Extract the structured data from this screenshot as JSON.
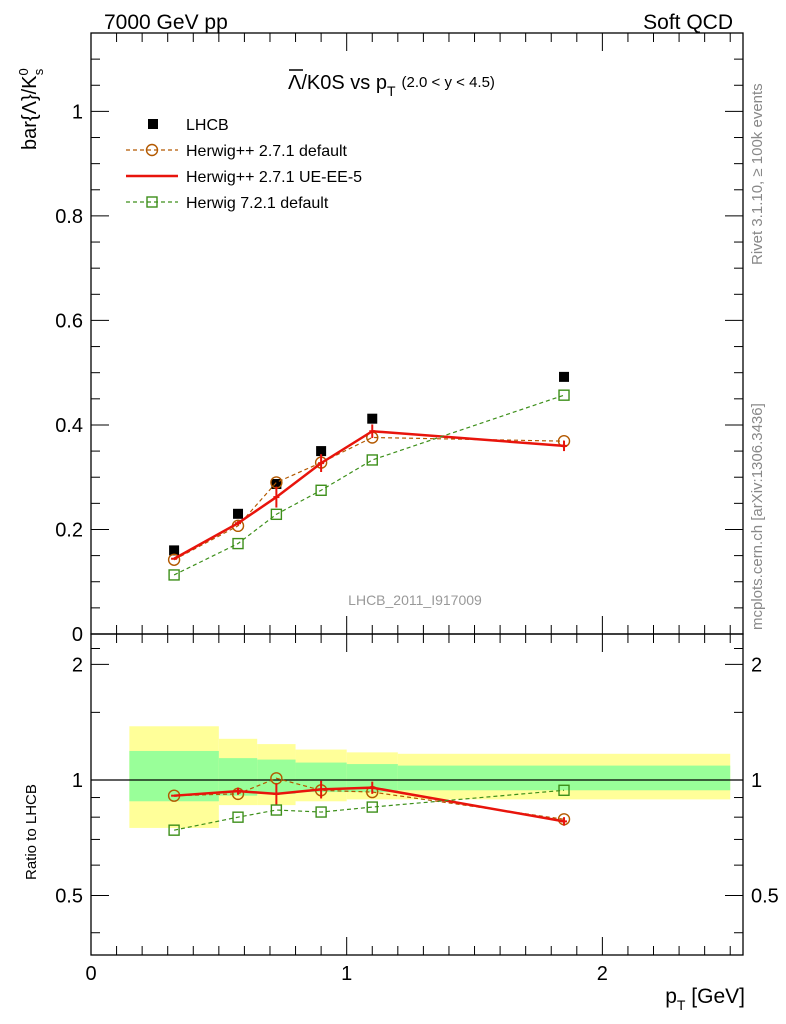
{
  "header": {
    "left": "7000 GeV pp",
    "right": "Soft QCD"
  },
  "side": {
    "rivet": "Rivet 3.1.10, ≥ 100k events",
    "mcplots": "mcplots.cern.ch [arXiv:1306.3436]"
  },
  "chart_data": [
    {
      "type": "scatter",
      "title_main": "Λ/K0S vs p",
      "title_sub": "T",
      "title_range": "(2.0 < y < 4.5)",
      "ylabel": "bar{Λ}/K",
      "ylabel_sup": "0",
      "ylabel_sub": "s",
      "watermark": "LHCB_2011_I917009",
      "xlim": [
        0,
        2.55
      ],
      "ylim": [
        0,
        1.15
      ],
      "yticks": [
        {
          "v": 0,
          "l": "0"
        },
        {
          "v": 0.2,
          "l": "0.2"
        },
        {
          "v": 0.4,
          "l": "0.4"
        },
        {
          "v": 0.6,
          "l": "0.6"
        },
        {
          "v": 0.8,
          "l": "0.8"
        },
        {
          "v": 1,
          "l": "1"
        }
      ],
      "series": [
        {
          "name": "LHCB",
          "style": "data",
          "color": "#000000",
          "x": [
            0.325,
            0.575,
            0.725,
            0.9,
            1.1,
            1.85
          ],
          "y": [
            0.16,
            0.23,
            0.287,
            0.35,
            0.412,
            0.492
          ],
          "err": [
            0,
            0,
            0,
            0,
            0,
            0
          ]
        },
        {
          "name": "Herwig++ 2.7.1 default",
          "style": "circle-dash",
          "color": "#b35900",
          "x": [
            0.325,
            0.575,
            0.725,
            0.9,
            1.1,
            1.85
          ],
          "y": [
            0.142,
            0.207,
            0.29,
            0.328,
            0.376,
            0.369
          ],
          "err": [
            0,
            0,
            0,
            0,
            0,
            0
          ]
        },
        {
          "name": "Herwig++ 2.7.1 UE-EE-5",
          "style": "solid",
          "color": "#e8140c",
          "x": [
            0.325,
            0.575,
            0.725,
            0.9,
            1.1,
            1.85
          ],
          "y": [
            0.144,
            0.212,
            0.262,
            0.327,
            0.388,
            0.36
          ],
          "err": [
            0,
            0.004,
            0.02,
            0.017,
            0.013,
            0.01
          ]
        },
        {
          "name": "Herwig 7.2.1 default",
          "style": "square-dash",
          "color": "#3d8f1a",
          "x": [
            0.325,
            0.575,
            0.725,
            0.9,
            1.1,
            1.85
          ],
          "y": [
            0.113,
            0.173,
            0.229,
            0.275,
            0.333,
            0.457
          ],
          "err": [
            0,
            0,
            0,
            0,
            0,
            0
          ]
        }
      ]
    },
    {
      "type": "scatter",
      "ylabel": "Ratio to LHCB",
      "xlabel_main": "p",
      "xlabel_sub": "T",
      "xlabel_unit": " [GeV]",
      "xlim": [
        0,
        2.55
      ],
      "ylim": [
        0.35,
        2.4
      ],
      "xticks": [
        {
          "v": 0,
          "l": "0"
        },
        {
          "v": 1,
          "l": "1"
        },
        {
          "v": 2,
          "l": "2"
        }
      ],
      "yticks": [
        {
          "v": 0.5,
          "l": "0.5"
        },
        {
          "v": 1,
          "l": "1"
        },
        {
          "v": 2,
          "l": "2"
        }
      ],
      "bands": [
        {
          "x0": 0.15,
          "x1": 0.5,
          "inner": [
            0.88,
            1.19
          ],
          "outer": [
            0.75,
            1.38
          ]
        },
        {
          "x0": 0.5,
          "x1": 0.65,
          "inner": [
            0.91,
            1.14
          ],
          "outer": [
            0.86,
            1.28
          ]
        },
        {
          "x0": 0.65,
          "x1": 0.8,
          "inner": [
            0.92,
            1.13
          ],
          "outer": [
            0.86,
            1.24
          ]
        },
        {
          "x0": 0.8,
          "x1": 1.0,
          "inner": [
            0.93,
            1.11
          ],
          "outer": [
            0.88,
            1.2
          ]
        },
        {
          "x0": 1.0,
          "x1": 1.2,
          "inner": [
            0.93,
            1.1
          ],
          "outer": [
            0.89,
            1.18
          ]
        },
        {
          "x0": 1.2,
          "x1": 2.5,
          "inner": [
            0.94,
            1.09
          ],
          "outer": [
            0.89,
            1.17
          ]
        }
      ],
      "series": [
        {
          "name": "Herwig++ 2.7.1 default",
          "style": "circle-dash",
          "color": "#b35900",
          "x": [
            0.325,
            0.575,
            0.725,
            0.9,
            1.1,
            1.85
          ],
          "y": [
            0.91,
            0.92,
            1.01,
            0.94,
            0.93,
            0.79
          ],
          "err": [
            0,
            0,
            0,
            0,
            0,
            0
          ]
        },
        {
          "name": "Herwig++ 2.7.1 UE-EE-5",
          "style": "solid",
          "color": "#e8140c",
          "x": [
            0.325,
            0.575,
            0.725,
            0.9,
            1.1,
            1.85
          ],
          "y": [
            0.91,
            0.935,
            0.92,
            0.945,
            0.955,
            0.78
          ],
          "err": [
            0,
            0.02,
            0.06,
            0.05,
            0.035,
            0.02
          ]
        },
        {
          "name": "Herwig 7.2.1 default",
          "style": "square-dash",
          "color": "#3d8f1a",
          "x": [
            0.325,
            0.575,
            0.725,
            0.9,
            1.1,
            1.85
          ],
          "y": [
            0.74,
            0.8,
            0.835,
            0.825,
            0.85,
            0.94
          ],
          "err": [
            0,
            0,
            0,
            0,
            0,
            0
          ]
        }
      ]
    }
  ]
}
